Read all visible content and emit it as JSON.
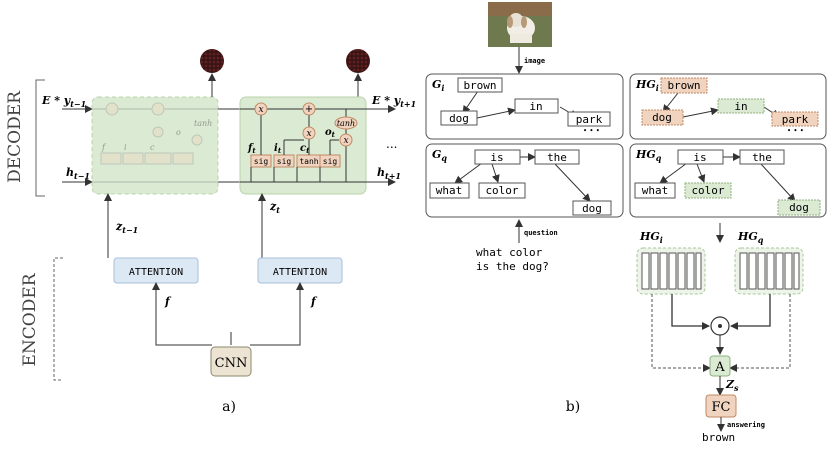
{
  "panel_a": {
    "caption": "a)",
    "decoder_label": "DECODER",
    "encoder_label": "ENCODER",
    "input_top_left": "E * y",
    "input_top_left_sub": "t−1",
    "input_top_right": "E * y",
    "input_top_right_sub": "t+1",
    "h_prev": "h",
    "h_prev_sub": "t−1",
    "h_next": "h",
    "h_next_sub": "t+1",
    "ellipsis": "...",
    "z_prev": "z",
    "z_prev_sub": "t−1",
    "z_cur": "z",
    "z_cur_sub": "t",
    "attention_left": "ATTENTION",
    "attention_right": "ATTENTION",
    "f_left": "f",
    "f_right": "f",
    "cnn": "CNN",
    "gate_labels": {
      "f": "f",
      "f_sub": "t",
      "i": "i",
      "i_sub": "t",
      "c": "c",
      "c_sub": "t",
      "o": "o",
      "o_sub": "t"
    },
    "cell_boxes": [
      "sig",
      "sig",
      "tanh",
      "sig"
    ],
    "op_x": "x",
    "op_plus": "+",
    "tanh": "tanh"
  },
  "panel_b": {
    "caption": "b)",
    "image_arrow_label": "image",
    "question_arrow_label": "question",
    "question_line1": "what color",
    "question_line2": "is the dog?",
    "gi": {
      "title": "G",
      "sub": "i",
      "nodes": [
        "brown",
        "in",
        "dog",
        "park"
      ],
      "ellipsis": "• • •"
    },
    "hgi": {
      "title": "HG",
      "sub": "i",
      "nodes": [
        "brown",
        "in",
        "dog",
        "park"
      ],
      "ellipsis": "• • •"
    },
    "gq": {
      "title": "G",
      "sub": "q",
      "nodes": [
        "is",
        "the",
        "what",
        "color",
        "dog"
      ]
    },
    "hgq": {
      "title": "HG",
      "sub": "q",
      "nodes": [
        "is",
        "the",
        "what",
        "color",
        "dog"
      ]
    },
    "hg_i_label": "HG",
    "hg_i_sub": "i",
    "hg_q_label": "HG",
    "hg_q_sub": "q",
    "odot": "⊙",
    "a_box": "A",
    "zs": "Z",
    "zs_sub": "s",
    "fc": "FC",
    "answering_label": "answering",
    "answer": "brown"
  },
  "colors": {
    "green_fill": "#dbead3",
    "green_dashed": "#b9d3ab",
    "blue_fill": "#dde8f5",
    "orange_fill": "#f1d4bf",
    "orange_stroke": "#c08a64",
    "cnn_fill": "#ece3d3",
    "dark_circle": "#3a1414"
  }
}
